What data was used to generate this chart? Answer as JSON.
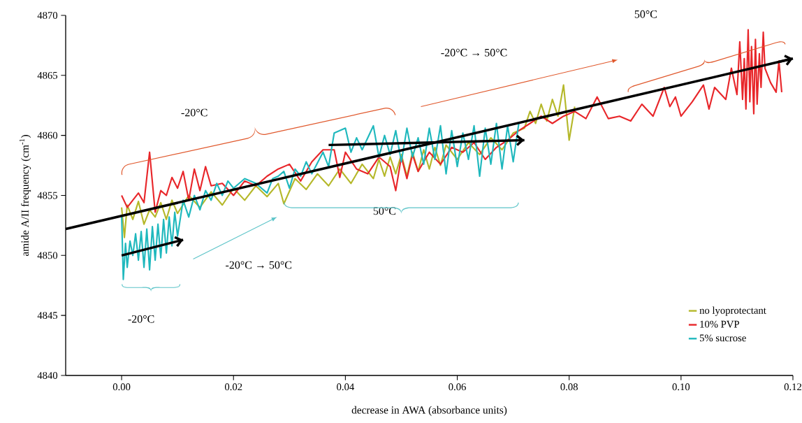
{
  "chart_data": {
    "type": "line",
    "xlabel": "decrease in AWA (absorbance units)",
    "ylabel": "amide A/II frequency (cm$^{-1}$)",
    "xlim": [
      -0.01,
      0.12
    ],
    "ylim": [
      4840,
      4870
    ],
    "xticks": [
      {
        "value": 0,
        "label": "0.00"
      },
      {
        "value": 0.02,
        "label": "0.02"
      },
      {
        "value": 0.04,
        "label": "0.04"
      },
      {
        "value": 0.06,
        "label": "0.06"
      },
      {
        "value": 0.08,
        "label": "0.08"
      },
      {
        "value": 0.1,
        "label": "0.10"
      },
      {
        "value": 0.12,
        "label": "0.12"
      }
    ],
    "yticks": [
      4840,
      4845,
      4850,
      4855,
      4860,
      4865,
      4870
    ],
    "legend": "bottom right",
    "grid": false,
    "marker": "none",
    "annotations": [
      "-20°C",
      "-20°C → 50°C",
      "50°C",
      "-20°C → 50°C",
      "50°C",
      "-20°C"
    ],
    "series": [
      {
        "name": "no lyoprotectant",
        "color": "#b5b82a",
        "x": [
          0.0,
          0.0005,
          0.001,
          0.002,
          0.003,
          0.004,
          0.005,
          0.006,
          0.007,
          0.008,
          0.009,
          0.01,
          0.012,
          0.014,
          0.016,
          0.018,
          0.02,
          0.022,
          0.024,
          0.026,
          0.028,
          0.029,
          0.031,
          0.033,
          0.035,
          0.037,
          0.039,
          0.041,
          0.043,
          0.045,
          0.046,
          0.047,
          0.048,
          0.049,
          0.05,
          0.051,
          0.052,
          0.053,
          0.054,
          0.055,
          0.056,
          0.057,
          0.058,
          0.06,
          0.062,
          0.064,
          0.066,
          0.068,
          0.07,
          0.072,
          0.073,
          0.074,
          0.075,
          0.076,
          0.077,
          0.078,
          0.079,
          0.08,
          0.081
        ],
        "values": [
          4854.0,
          4851.5,
          4854.2,
          4853.0,
          4854.5,
          4852.6,
          4853.8,
          4853.2,
          4854.4,
          4853.0,
          4854.6,
          4853.5,
          4855.0,
          4854.0,
          4855.3,
          4854.2,
          4855.6,
          4854.6,
          4855.8,
          4854.9,
          4856.0,
          4854.3,
          4856.4,
          4855.5,
          4856.8,
          4855.8,
          4857.2,
          4856.0,
          4857.6,
          4856.4,
          4858.0,
          4856.6,
          4858.2,
          4856.8,
          4858.4,
          4856.6,
          4858.6,
          4857.0,
          4858.8,
          4857.2,
          4859.0,
          4857.5,
          4859.2,
          4858.0,
          4859.4,
          4858.4,
          4859.8,
          4858.8,
          4860.2,
          4860.6,
          4862.0,
          4861.0,
          4862.6,
          4861.2,
          4863.0,
          4861.6,
          4864.2,
          4859.6,
          4862.4
        ]
      },
      {
        "name": "10% PVP",
        "color": "#e8262a",
        "x": [
          0.0,
          0.001,
          0.002,
          0.003,
          0.004,
          0.005,
          0.006,
          0.007,
          0.008,
          0.009,
          0.01,
          0.011,
          0.012,
          0.013,
          0.014,
          0.015,
          0.016,
          0.018,
          0.02,
          0.022,
          0.024,
          0.026,
          0.028,
          0.03,
          0.032,
          0.034,
          0.036,
          0.038,
          0.039,
          0.04,
          0.042,
          0.044,
          0.046,
          0.048,
          0.049,
          0.05,
          0.051,
          0.052,
          0.053,
          0.055,
          0.057,
          0.059,
          0.061,
          0.063,
          0.065,
          0.067,
          0.069,
          0.071,
          0.073,
          0.075,
          0.077,
          0.079,
          0.081,
          0.083,
          0.085,
          0.087,
          0.089,
          0.091,
          0.093,
          0.095,
          0.097,
          0.098,
          0.099,
          0.1,
          0.102,
          0.104,
          0.105,
          0.106,
          0.108,
          0.109,
          0.11,
          0.1105,
          0.111,
          0.1113,
          0.1116,
          0.112,
          0.1123,
          0.1126,
          0.113,
          0.1133,
          0.1136,
          0.114,
          0.1143,
          0.1147,
          0.115,
          0.116,
          0.117,
          0.1175,
          0.118
        ],
        "values": [
          4855.0,
          4854.0,
          4854.6,
          4855.2,
          4854.4,
          4858.6,
          4853.6,
          4855.4,
          4855.0,
          4856.5,
          4855.6,
          4857.0,
          4854.6,
          4857.2,
          4855.4,
          4857.4,
          4855.8,
          4856.0,
          4855.0,
          4856.2,
          4855.8,
          4856.6,
          4857.2,
          4857.6,
          4856.2,
          4857.8,
          4858.8,
          4858.8,
          4856.5,
          4858.6,
          4857.2,
          4856.8,
          4858.2,
          4857.4,
          4855.4,
          4858.2,
          4856.4,
          4858.4,
          4857.0,
          4858.6,
          4857.6,
          4859.0,
          4858.6,
          4859.4,
          4858.0,
          4859.0,
          4859.6,
          4860.4,
          4861.0,
          4861.6,
          4861.0,
          4861.6,
          4862.0,
          4861.4,
          4863.2,
          4861.4,
          4861.6,
          4861.2,
          4862.6,
          4861.6,
          4864.0,
          4862.4,
          4863.2,
          4861.6,
          4862.8,
          4864.2,
          4862.2,
          4864.0,
          4863.0,
          4865.6,
          4863.4,
          4867.8,
          4863.0,
          4866.4,
          4862.2,
          4868.8,
          4862.8,
          4867.4,
          4861.8,
          4868.0,
          4862.6,
          4866.8,
          4864.0,
          4868.6,
          4865.6,
          4864.4,
          4863.6,
          4866.2,
          4863.6
        ]
      },
      {
        "name": "5% sucrose",
        "color": "#1fb8bd",
        "x": [
          0.0,
          0.0003,
          0.0007,
          0.001,
          0.0015,
          0.002,
          0.0025,
          0.003,
          0.0035,
          0.004,
          0.0045,
          0.005,
          0.0055,
          0.006,
          0.0065,
          0.007,
          0.0075,
          0.008,
          0.0085,
          0.009,
          0.0095,
          0.01,
          0.011,
          0.012,
          0.013,
          0.014,
          0.015,
          0.016,
          0.017,
          0.018,
          0.019,
          0.02,
          0.022,
          0.024,
          0.026,
          0.027,
          0.028,
          0.029,
          0.03,
          0.031,
          0.032,
          0.033,
          0.034,
          0.036,
          0.037,
          0.038,
          0.04,
          0.041,
          0.042,
          0.043,
          0.045,
          0.046,
          0.047,
          0.048,
          0.049,
          0.05,
          0.051,
          0.052,
          0.053,
          0.054,
          0.055,
          0.056,
          0.057,
          0.058,
          0.059,
          0.06,
          0.061,
          0.062,
          0.063,
          0.064,
          0.065,
          0.066,
          0.067,
          0.068,
          0.069,
          0.07,
          0.071
        ],
        "values": [
          4853.4,
          4848.0,
          4851.0,
          4849.0,
          4851.2,
          4850.0,
          4851.8,
          4849.6,
          4852.0,
          4849.0,
          4852.2,
          4848.8,
          4852.4,
          4849.6,
          4852.6,
          4849.8,
          4853.0,
          4850.2,
          4853.2,
          4850.8,
          4853.6,
          4851.6,
          4854.6,
          4853.2,
          4855.0,
          4853.8,
          4855.4,
          4854.6,
          4856.0,
          4855.0,
          4856.2,
          4855.6,
          4856.4,
          4856.0,
          4855.2,
          4856.4,
          4856.6,
          4857.0,
          4855.6,
          4857.2,
          4856.6,
          4857.8,
          4856.8,
          4858.6,
          4857.4,
          4860.2,
          4860.6,
          4858.6,
          4859.8,
          4858.8,
          4860.8,
          4858.2,
          4860.0,
          4858.4,
          4860.4,
          4857.8,
          4860.6,
          4858.2,
          4859.8,
          4857.6,
          4860.6,
          4858.0,
          4860.8,
          4856.8,
          4860.4,
          4857.4,
          4860.2,
          4858.0,
          4860.8,
          4856.6,
          4860.6,
          4857.6,
          4861.0,
          4857.2,
          4860.8,
          4857.8,
          4861.0
        ]
      },
      {
        "type": "line",
        "color": "#000000",
        "x": [
          -0.01,
          0.12
        ],
        "values": [
          4852.2,
          4866.4
        ]
      },
      {
        "type": "line",
        "color": "#000000",
        "x": [
          0.0,
          0.011
        ],
        "values": [
          4850.0,
          4851.3
        ]
      },
      {
        "type": "line",
        "color": "#000000",
        "x": [
          0.037,
          0.072
        ],
        "values": [
          4859.2,
          4859.6
        ]
      }
    ]
  }
}
